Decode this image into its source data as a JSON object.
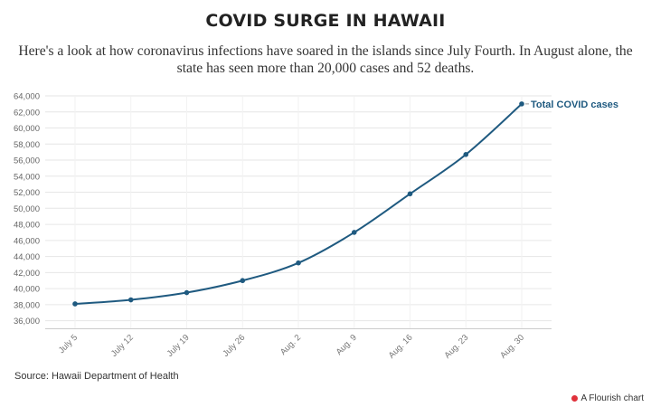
{
  "header": {
    "title": "COVID SURGE IN HAWAII",
    "subtitle": "Here's a look at how coronavirus infections have soared in the islands since July Fourth. In August alone, the state has seen more than 20,000 cases and 52 deaths."
  },
  "footer": {
    "source": "Source: Hawaii Department of Health",
    "credit": "A Flourish chart"
  },
  "colors": {
    "series": "#1f5a80",
    "grid": "#e6e6e6",
    "credit_accent": "#e0313b"
  },
  "chart_data": {
    "type": "line",
    "categories": [
      "July 5",
      "July 12",
      "July 19",
      "July 26",
      "Aug. 2",
      "Aug. 9",
      "Aug. 16",
      "Aug. 23",
      "Aug. 30"
    ],
    "series": [
      {
        "name": "Total COVID cases",
        "values": [
          38100,
          38600,
          39500,
          41000,
          43200,
          47000,
          51800,
          56700,
          63000
        ]
      }
    ],
    "yticks": [
      36000,
      38000,
      40000,
      42000,
      44000,
      46000,
      48000,
      50000,
      52000,
      54000,
      56000,
      58000,
      60000,
      62000,
      64000
    ],
    "ylim": [
      35000,
      64000
    ],
    "grid": true,
    "legend": "end-of-line label"
  }
}
